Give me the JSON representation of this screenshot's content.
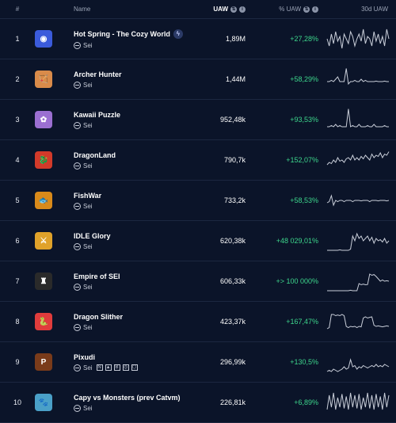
{
  "header": {
    "rank": "#",
    "name": "Name",
    "uaw": "UAW",
    "pct_uaw": "% UAW",
    "chart": "30d UAW",
    "info_icon": "info-icon"
  },
  "rows": [
    {
      "rank": "1",
      "name": "Hot Spring - The Cozy World",
      "chain": "Sei",
      "uaw": "1,89M",
      "pct": "+27,28%",
      "icon_color": "#3b5bdb",
      "icon_glyph": "◉",
      "verified": true,
      "spark": [
        0.5,
        0.2,
        0.7,
        0.3,
        0.8,
        0.4,
        0.6,
        0.1,
        0.7,
        0.5,
        0.3,
        0.8,
        0.6,
        0.2,
        0.5,
        0.7,
        0.4,
        0.9,
        0.3,
        0.6,
        0.5,
        0.2,
        0.8,
        0.4,
        0.7,
        0.3,
        0.6,
        0.2,
        0.9,
        0.5
      ]
    },
    {
      "rank": "2",
      "name": "Archer Hunter",
      "chain": "Sei",
      "uaw": "1,44M",
      "pct": "+58,29%",
      "icon_color": "#d98b4a",
      "icon_glyph": "🏹",
      "spark": [
        0.4,
        0.4,
        0.45,
        0.4,
        0.5,
        0.6,
        0.4,
        0.4,
        0.4,
        0.95,
        0.3,
        0.4,
        0.4,
        0.45,
        0.4,
        0.4,
        0.5,
        0.4,
        0.45,
        0.4,
        0.4,
        0.4,
        0.4,
        0.42,
        0.4,
        0.4,
        0.4,
        0.42,
        0.4,
        0.4
      ]
    },
    {
      "rank": "3",
      "name": "Kawaii Puzzle",
      "chain": "Sei",
      "uaw": "952,48k",
      "pct": "+93,53%",
      "icon_color": "#9b6fd1",
      "icon_glyph": "✿",
      "spark": [
        0.2,
        0.2,
        0.25,
        0.2,
        0.3,
        0.2,
        0.25,
        0.2,
        0.2,
        0.2,
        0.95,
        0.2,
        0.25,
        0.2,
        0.2,
        0.3,
        0.2,
        0.2,
        0.2,
        0.25,
        0.2,
        0.2,
        0.3,
        0.2,
        0.2,
        0.2,
        0.2,
        0.25,
        0.2,
        0.2
      ]
    },
    {
      "rank": "4",
      "name": "DragonLand",
      "chain": "Sei",
      "uaw": "790,7k",
      "pct": "+152,07%",
      "icon_color": "#d23a2a",
      "icon_glyph": "🐉",
      "spark": [
        0.3,
        0.4,
        0.35,
        0.5,
        0.4,
        0.6,
        0.45,
        0.5,
        0.4,
        0.55,
        0.6,
        0.5,
        0.7,
        0.5,
        0.6,
        0.5,
        0.65,
        0.55,
        0.7,
        0.6,
        0.5,
        0.75,
        0.6,
        0.7,
        0.65,
        0.8,
        0.6,
        0.75,
        0.7,
        0.85
      ]
    },
    {
      "rank": "5",
      "name": "FishWar",
      "chain": "Sei",
      "uaw": "733,2k",
      "pct": "+58,53%",
      "icon_color": "#d98a1a",
      "icon_glyph": "🐟",
      "spark": [
        0.4,
        0.45,
        0.7,
        0.3,
        0.5,
        0.45,
        0.5,
        0.5,
        0.45,
        0.5,
        0.5,
        0.5,
        0.45,
        0.5,
        0.5,
        0.5,
        0.48,
        0.5,
        0.5,
        0.5,
        0.45,
        0.5,
        0.5,
        0.5,
        0.48,
        0.5,
        0.5,
        0.5,
        0.48,
        0.5
      ]
    },
    {
      "rank": "6",
      "name": "IDLE Glory",
      "chain": "Sei",
      "uaw": "620,38k",
      "pct": "+48 029,01%",
      "icon_color": "#e0a22a",
      "icon_glyph": "⚔",
      "spark": [
        0.1,
        0.1,
        0.1,
        0.1,
        0.1,
        0.1,
        0.12,
        0.1,
        0.1,
        0.1,
        0.1,
        0.15,
        0.7,
        0.5,
        0.8,
        0.6,
        0.7,
        0.5,
        0.6,
        0.7,
        0.5,
        0.65,
        0.4,
        0.6,
        0.5,
        0.55,
        0.45,
        0.6,
        0.4,
        0.5
      ]
    },
    {
      "rank": "7",
      "name": "Empire of SEI",
      "chain": "Sei",
      "uaw": "606,33k",
      "pct": "+> 100 000%",
      "icon_color": "#2a2a2a",
      "icon_glyph": "♜",
      "spark": [
        0.1,
        0.1,
        0.1,
        0.1,
        0.1,
        0.1,
        0.1,
        0.1,
        0.1,
        0.1,
        0.1,
        0.12,
        0.1,
        0.1,
        0.1,
        0.4,
        0.35,
        0.38,
        0.35,
        0.36,
        0.8,
        0.75,
        0.78,
        0.7,
        0.6,
        0.5,
        0.55,
        0.5,
        0.52,
        0.5
      ]
    },
    {
      "rank": "8",
      "name": "Dragon Slither",
      "chain": "Sei",
      "uaw": "423,37k",
      "pct": "+167,47%",
      "icon_color": "#e03c3c",
      "icon_glyph": "🐍",
      "spark": [
        0.2,
        0.25,
        0.8,
        0.8,
        0.75,
        0.78,
        0.75,
        0.8,
        0.75,
        0.3,
        0.25,
        0.3,
        0.28,
        0.3,
        0.25,
        0.3,
        0.28,
        0.65,
        0.7,
        0.65,
        0.68,
        0.7,
        0.35,
        0.3,
        0.32,
        0.3,
        0.28,
        0.3,
        0.32,
        0.3
      ]
    },
    {
      "rank": "9",
      "name": "Pixudi",
      "chain": "Sei",
      "uaw": "296,99k",
      "pct": "+130,5%",
      "icon_color": "#7a3b1a",
      "icon_glyph": "P",
      "extra_chains": [
        "N",
        "▲",
        "B",
        "◎",
        "⬡"
      ],
      "spark": [
        0.1,
        0.15,
        0.1,
        0.2,
        0.15,
        0.1,
        0.15,
        0.2,
        0.3,
        0.2,
        0.25,
        0.6,
        0.3,
        0.35,
        0.2,
        0.3,
        0.25,
        0.35,
        0.3,
        0.25,
        0.3,
        0.35,
        0.3,
        0.4,
        0.3,
        0.35,
        0.3,
        0.4,
        0.35,
        0.3
      ]
    },
    {
      "rank": "10",
      "name": "Capy vs Monsters (prev Catvm)",
      "chain": "Sei",
      "uaw": "226,81k",
      "pct": "+6,89%",
      "icon_color": "#4aa0c8",
      "icon_glyph": "🐾",
      "spark": [
        0.2,
        0.8,
        0.3,
        0.9,
        0.2,
        0.7,
        0.3,
        0.85,
        0.25,
        0.75,
        0.2,
        0.9,
        0.3,
        0.8,
        0.25,
        0.85,
        0.2,
        0.7,
        0.3,
        0.9,
        0.25,
        0.8,
        0.2,
        0.85,
        0.3,
        0.75,
        0.2,
        0.9,
        0.3,
        0.8
      ]
    }
  ]
}
